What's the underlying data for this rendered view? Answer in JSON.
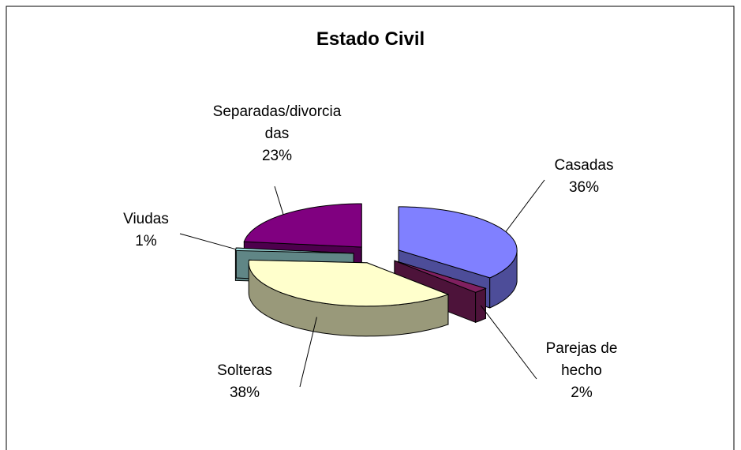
{
  "chart_data": {
    "type": "pie3d",
    "title": "Estado Civil",
    "categories": [
      "Casadas",
      "Parejas de hecho",
      "Solteras",
      "Viudas",
      "Separadas/divorciadas"
    ],
    "values": [
      36,
      2,
      38,
      1,
      23
    ],
    "value_labels": [
      "36%",
      "2%",
      "38%",
      "1%",
      "23%"
    ],
    "colors": [
      "#8080ff",
      "#802060",
      "#ffffcc",
      "#a0e0e0",
      "#800080"
    ]
  }
}
